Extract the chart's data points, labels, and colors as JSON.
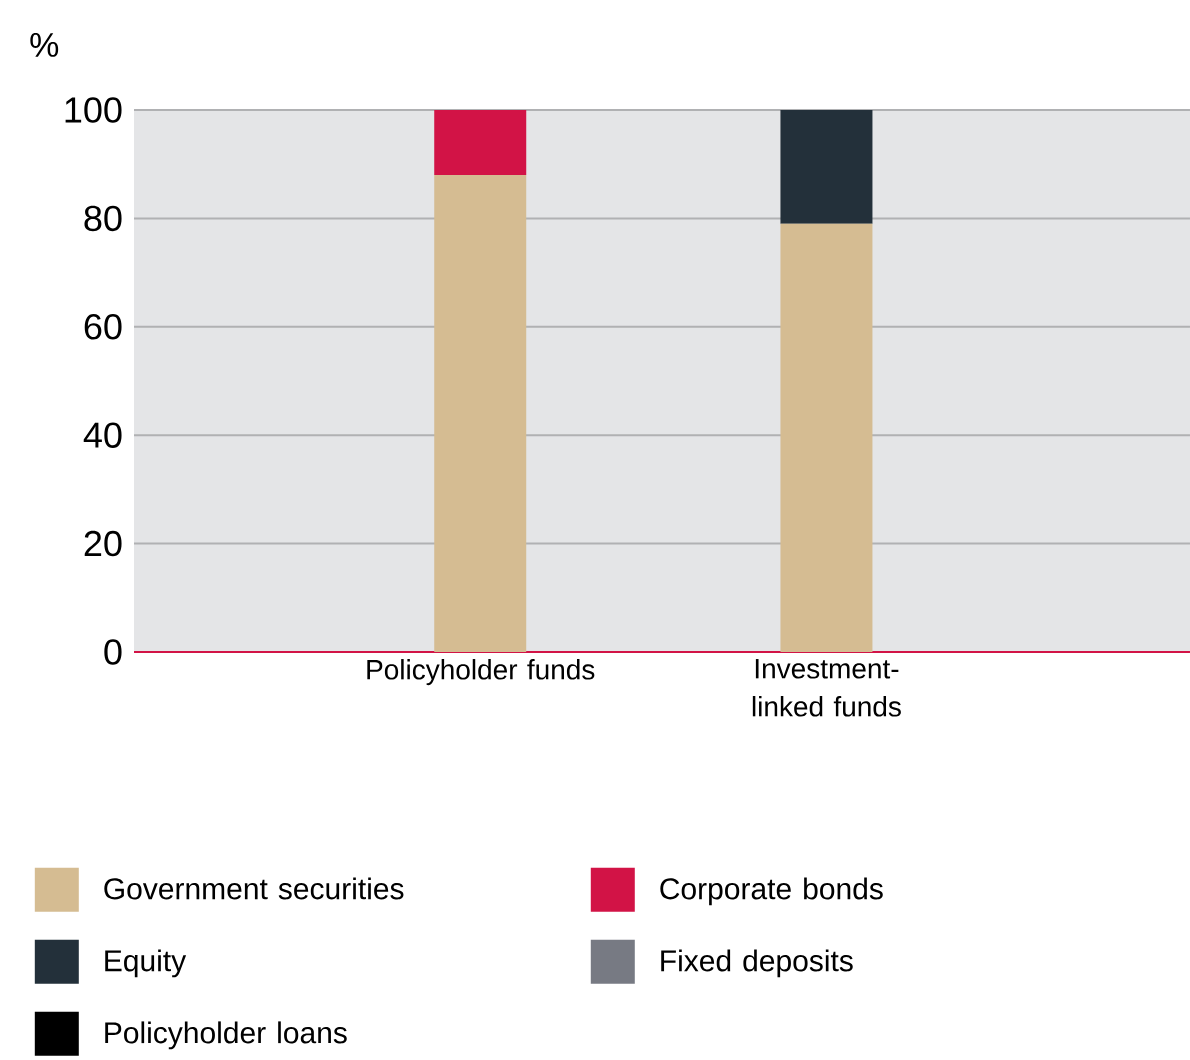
{
  "chart_data": {
    "type": "bar",
    "stacked": true,
    "ylabel": "%",
    "categories": [
      "Policyholder funds",
      "Investment-linked funds"
    ],
    "series": [
      {
        "name": "Government securities",
        "color": "#d5bc92",
        "values": [
          88,
          79
        ]
      },
      {
        "name": "Corporate bonds",
        "color": "#d21346",
        "values": [
          12,
          0
        ]
      },
      {
        "name": "Equity",
        "color": "#23303a",
        "values": [
          0,
          21
        ]
      },
      {
        "name": "Fixed deposits",
        "color": "#777a83",
        "values": [
          0,
          0
        ]
      },
      {
        "name": "Policyholder loans",
        "color": "#000000",
        "values": [
          0,
          0
        ]
      }
    ],
    "ylim": [
      0,
      100
    ],
    "yticks": [
      0,
      20,
      40,
      60,
      80,
      100
    ],
    "grid": "y",
    "legend": "bottom"
  }
}
